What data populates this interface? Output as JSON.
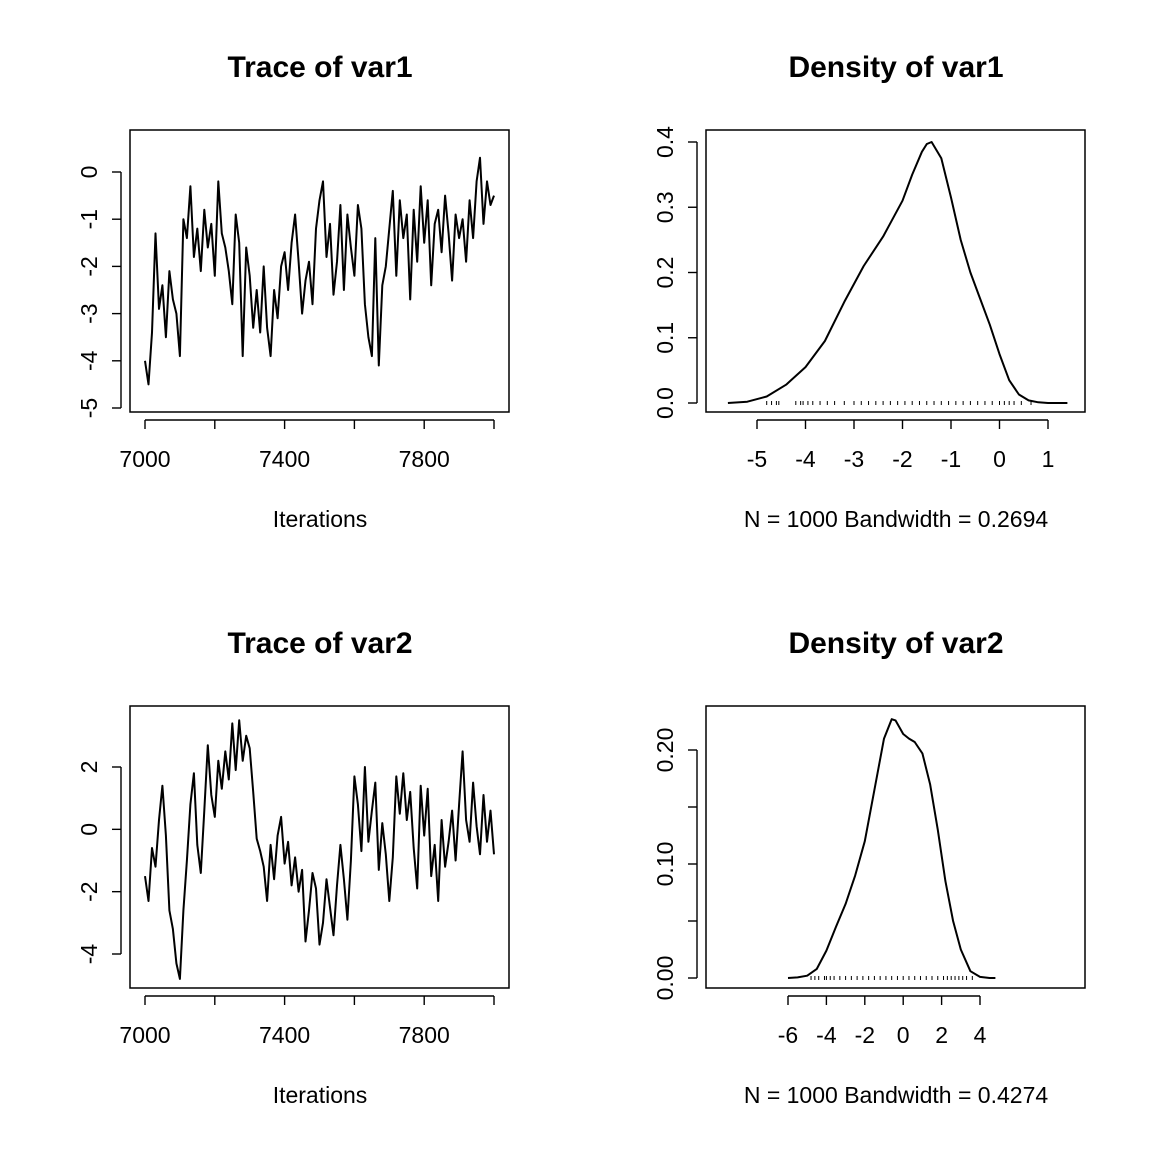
{
  "chart_data": [
    {
      "type": "line",
      "title": "Trace of var1",
      "xlabel": "Iterations",
      "ylabel": "",
      "xlim": [
        6960,
        8040
      ],
      "ylim": [
        -5.1,
        0.9
      ],
      "xticks": [
        7000,
        7400,
        7800
      ],
      "xtick_labels": [
        "7000",
        "7400",
        "7800"
      ],
      "xticks_unlabeled": [
        7200,
        7600,
        8000
      ],
      "yticks": [
        -5,
        -4,
        -3,
        -2,
        -1,
        0
      ],
      "ytick_labels": [
        "-5",
        "-4",
        "-3",
        "-2",
        "-1",
        "0"
      ],
      "series": [
        {
          "x": [
            7000,
            7010,
            7020,
            7030,
            7040,
            7050,
            7060,
            7070,
            7080,
            7090,
            7100,
            7110,
            7120,
            7130,
            7140,
            7150,
            7160,
            7170,
            7180,
            7190,
            7200,
            7210,
            7220,
            7230,
            7240,
            7250,
            7260,
            7270,
            7280,
            7290,
            7300,
            7310,
            7320,
            7330,
            7340,
            7350,
            7360,
            7370,
            7380,
            7390,
            7400,
            7410,
            7420,
            7430,
            7440,
            7450,
            7460,
            7470,
            7480,
            7490,
            7500,
            7510,
            7520,
            7530,
            7540,
            7550,
            7560,
            7570,
            7580,
            7590,
            7600,
            7610,
            7620,
            7630,
            7640,
            7650,
            7660,
            7670,
            7680,
            7690,
            7700,
            7710,
            7720,
            7730,
            7740,
            7750,
            7760,
            7770,
            7780,
            7790,
            7800,
            7810,
            7820,
            7830,
            7840,
            7850,
            7860,
            7870,
            7880,
            7890,
            7900,
            7910,
            7920,
            7930,
            7940,
            7950,
            7960,
            7970,
            7980,
            7990,
            8000
          ],
          "y": [
            -4.0,
            -4.5,
            -3.4,
            -1.3,
            -2.9,
            -2.4,
            -3.5,
            -2.1,
            -2.7,
            -3.0,
            -3.9,
            -1.0,
            -1.4,
            -0.3,
            -1.8,
            -1.2,
            -2.1,
            -0.8,
            -1.6,
            -1.1,
            -2.2,
            -0.2,
            -1.3,
            -1.6,
            -2.1,
            -2.8,
            -0.9,
            -1.5,
            -3.9,
            -1.6,
            -2.2,
            -3.3,
            -2.5,
            -3.4,
            -2.0,
            -3.3,
            -3.9,
            -2.5,
            -3.1,
            -2.0,
            -1.7,
            -2.5,
            -1.5,
            -0.9,
            -1.9,
            -3.0,
            -2.3,
            -1.9,
            -2.8,
            -1.2,
            -0.6,
            -0.2,
            -1.8,
            -1.1,
            -2.6,
            -1.9,
            -0.7,
            -2.5,
            -0.9,
            -1.6,
            -2.2,
            -0.7,
            -1.2,
            -2.8,
            -3.5,
            -3.9,
            -1.4,
            -4.1,
            -2.4,
            -2.0,
            -1.2,
            -0.4,
            -2.2,
            -0.6,
            -1.4,
            -0.9,
            -2.7,
            -0.8,
            -1.9,
            -0.3,
            -1.5,
            -0.6,
            -2.4,
            -1.1,
            -0.8,
            -1.7,
            -0.5,
            -1.3,
            -2.3,
            -0.9,
            -1.4,
            -1.0,
            -1.9,
            -0.6,
            -1.4,
            -0.2,
            0.3,
            -1.1,
            -0.2,
            -0.7,
            -0.5
          ]
        }
      ]
    },
    {
      "type": "line",
      "title": "Density of var1",
      "xlabel": "N = 1000   Bandwidth = 0.2694",
      "ylabel": "",
      "xlim": [
        -5.9,
        1.75
      ],
      "ylim": [
        -0.013,
        0.415
      ],
      "xticks": [
        -5,
        -4,
        -3,
        -2,
        -1,
        0,
        1
      ],
      "xtick_labels": [
        "-5",
        "-4",
        "-3",
        "-2",
        "-1",
        "0",
        "1"
      ],
      "yticks": [
        0.0,
        0.1,
        0.2,
        0.3,
        0.4
      ],
      "ytick_labels": [
        "0.0",
        "0.1",
        "0.2",
        "0.3",
        "0.4"
      ],
      "series": [
        {
          "x": [
            -5.6,
            -5.2,
            -4.8,
            -4.4,
            -4.0,
            -3.6,
            -3.2,
            -2.8,
            -2.4,
            -2.0,
            -1.8,
            -1.6,
            -1.5,
            -1.4,
            -1.2,
            -1.0,
            -0.8,
            -0.6,
            -0.4,
            -0.2,
            0.0,
            0.2,
            0.4,
            0.6,
            0.8,
            1.0,
            1.4
          ],
          "y": [
            0.0,
            0.002,
            0.01,
            0.028,
            0.055,
            0.095,
            0.155,
            0.21,
            0.255,
            0.31,
            0.35,
            0.385,
            0.397,
            0.4,
            0.375,
            0.315,
            0.25,
            0.2,
            0.16,
            0.12,
            0.075,
            0.035,
            0.013,
            0.004,
            0.001,
            0.0,
            0.0
          ]
        }
      ],
      "rug": [
        -4.8,
        -4.7,
        -4.6,
        -4.55,
        -4.2,
        -4.1,
        -4.05,
        -3.95,
        -3.85,
        -3.7,
        -3.55,
        -3.4,
        -3.2,
        -3.0,
        -2.85,
        -2.7,
        -2.55,
        -2.4,
        -2.25,
        -2.1,
        -1.95,
        -1.8,
        -1.65,
        -1.5,
        -1.35,
        -1.2,
        -1.05,
        -0.9,
        -0.75,
        -0.6,
        -0.45,
        -0.3,
        -0.15,
        0.0,
        0.1,
        0.2,
        0.3,
        0.45,
        0.65
      ]
    },
    {
      "type": "line",
      "title": "Trace of var2",
      "xlabel": "Iterations",
      "ylabel": "",
      "xlim": [
        6960,
        8040
      ],
      "ylim": [
        -5.2,
        3.9
      ],
      "xticks": [
        7000,
        7400,
        7800
      ],
      "xtick_labels": [
        "7000",
        "7400",
        "7800"
      ],
      "xticks_unlabeled": [
        7200,
        7600,
        8000
      ],
      "yticks": [
        -4,
        -2,
        0,
        2
      ],
      "ytick_labels": [
        "-4",
        "-2",
        "0",
        "2"
      ],
      "series": [
        {
          "x": [
            7000,
            7010,
            7020,
            7030,
            7040,
            7050,
            7060,
            7070,
            7080,
            7090,
            7100,
            7110,
            7120,
            7130,
            7140,
            7150,
            7160,
            7170,
            7180,
            7190,
            7200,
            7210,
            7220,
            7230,
            7240,
            7250,
            7260,
            7270,
            7280,
            7290,
            7300,
            7310,
            7320,
            7330,
            7340,
            7350,
            7360,
            7370,
            7380,
            7390,
            7400,
            7410,
            7420,
            7430,
            7440,
            7450,
            7460,
            7470,
            7480,
            7490,
            7500,
            7510,
            7520,
            7530,
            7540,
            7550,
            7560,
            7570,
            7580,
            7590,
            7600,
            7610,
            7620,
            7630,
            7640,
            7650,
            7660,
            7670,
            7680,
            7690,
            7700,
            7710,
            7720,
            7730,
            7740,
            7750,
            7760,
            7770,
            7780,
            7790,
            7800,
            7810,
            7820,
            7830,
            7840,
            7850,
            7860,
            7870,
            7880,
            7890,
            7900,
            7910,
            7920,
            7930,
            7940,
            7950,
            7960,
            7970,
            7980,
            7990,
            8000
          ],
          "y": [
            -1.5,
            -2.3,
            -0.6,
            -1.2,
            0.3,
            1.4,
            -0.2,
            -2.6,
            -3.2,
            -4.3,
            -4.8,
            -2.6,
            -1.0,
            0.8,
            1.8,
            -0.5,
            -1.4,
            0.6,
            2.7,
            1.1,
            0.4,
            2.2,
            1.3,
            2.5,
            1.6,
            3.4,
            1.9,
            3.5,
            2.2,
            3.0,
            2.6,
            1.2,
            -0.3,
            -0.7,
            -1.2,
            -2.3,
            -0.5,
            -1.6,
            -0.2,
            0.4,
            -1.1,
            -0.4,
            -1.8,
            -0.9,
            -2.0,
            -1.3,
            -3.6,
            -2.6,
            -1.4,
            -1.9,
            -3.7,
            -3.0,
            -1.6,
            -2.5,
            -3.4,
            -1.8,
            -0.5,
            -1.6,
            -2.9,
            -1.0,
            1.7,
            0.8,
            -0.7,
            2.0,
            -0.4,
            0.6,
            1.5,
            -1.3,
            0.2,
            -0.8,
            -2.3,
            -0.9,
            1.7,
            0.5,
            1.8,
            0.3,
            1.2,
            -0.6,
            -1.9,
            1.4,
            -0.2,
            1.3,
            -1.5,
            -0.5,
            -2.3,
            0.3,
            -1.2,
            -0.4,
            0.6,
            -1.0,
            0.8,
            2.5,
            0.3,
            -0.4,
            1.5,
            0.1,
            -0.8,
            1.1,
            -0.4,
            0.6,
            -0.8
          ]
        }
      ]
    },
    {
      "type": "line",
      "title": "Density of var2",
      "xlabel": "N = 1000   Bandwidth = 0.4274",
      "ylabel": "",
      "xlim": [
        -6.6,
        5.3
      ],
      "ylim": [
        -0.007,
        0.237
      ],
      "xticks": [
        -6,
        -4,
        -2,
        0,
        2,
        4
      ],
      "xtick_labels": [
        "-6",
        "-4",
        "-2",
        "0",
        "2",
        "4"
      ],
      "yticks": [
        0.0,
        0.05,
        0.1,
        0.15,
        0.2
      ],
      "ytick_labels": [
        "0.00",
        "",
        "0.10",
        "",
        "0.20"
      ],
      "series": [
        {
          "x": [
            -6.0,
            -5.5,
            -5.0,
            -4.5,
            -4.0,
            -3.5,
            -3.0,
            -2.5,
            -2.0,
            -1.5,
            -1.0,
            -0.6,
            -0.4,
            -0.2,
            0.0,
            0.3,
            0.6,
            1.0,
            1.4,
            1.8,
            2.2,
            2.6,
            3.0,
            3.5,
            4.0,
            4.5,
            4.8
          ],
          "y": [
            0.0,
            0.0005,
            0.002,
            0.008,
            0.024,
            0.045,
            0.065,
            0.09,
            0.12,
            0.165,
            0.21,
            0.227,
            0.226,
            0.22,
            0.214,
            0.21,
            0.207,
            0.197,
            0.17,
            0.13,
            0.085,
            0.05,
            0.025,
            0.006,
            0.001,
            0.0,
            0.0
          ]
        }
      ],
      "rug": [
        -4.8,
        -4.6,
        -4.4,
        -4.1,
        -4.0,
        -3.8,
        -3.6,
        -3.3,
        -3.0,
        -2.7,
        -2.4,
        -2.1,
        -1.8,
        -1.5,
        -1.2,
        -0.9,
        -0.6,
        -0.3,
        0.0,
        0.3,
        0.6,
        0.9,
        1.2,
        1.5,
        1.8,
        2.1,
        2.3,
        2.5,
        2.7,
        2.9,
        3.1,
        3.3,
        3.6
      ]
    }
  ]
}
